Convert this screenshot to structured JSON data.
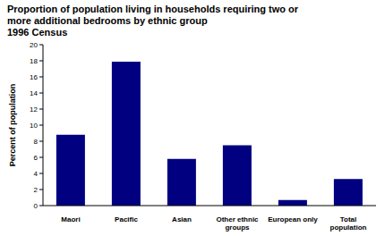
{
  "chart_data": {
    "type": "bar",
    "title": "Proportion of population living in households requiring two or more additional bedrooms by ethnic group",
    "subtitle": "1996 Census",
    "y_label": "Percent of population",
    "categories": [
      "Maori",
      "Pacific",
      "Asian",
      "Other ethnic groups",
      "European only",
      "Total population"
    ],
    "values": [
      8.8,
      17.9,
      5.8,
      7.5,
      0.7,
      3.3
    ],
    "color": "#000080",
    "ylim": [
      0,
      20
    ],
    "yticks": [
      0,
      2,
      4,
      6,
      8,
      10,
      12,
      14,
      16,
      18,
      20
    ],
    "grid": false
  }
}
